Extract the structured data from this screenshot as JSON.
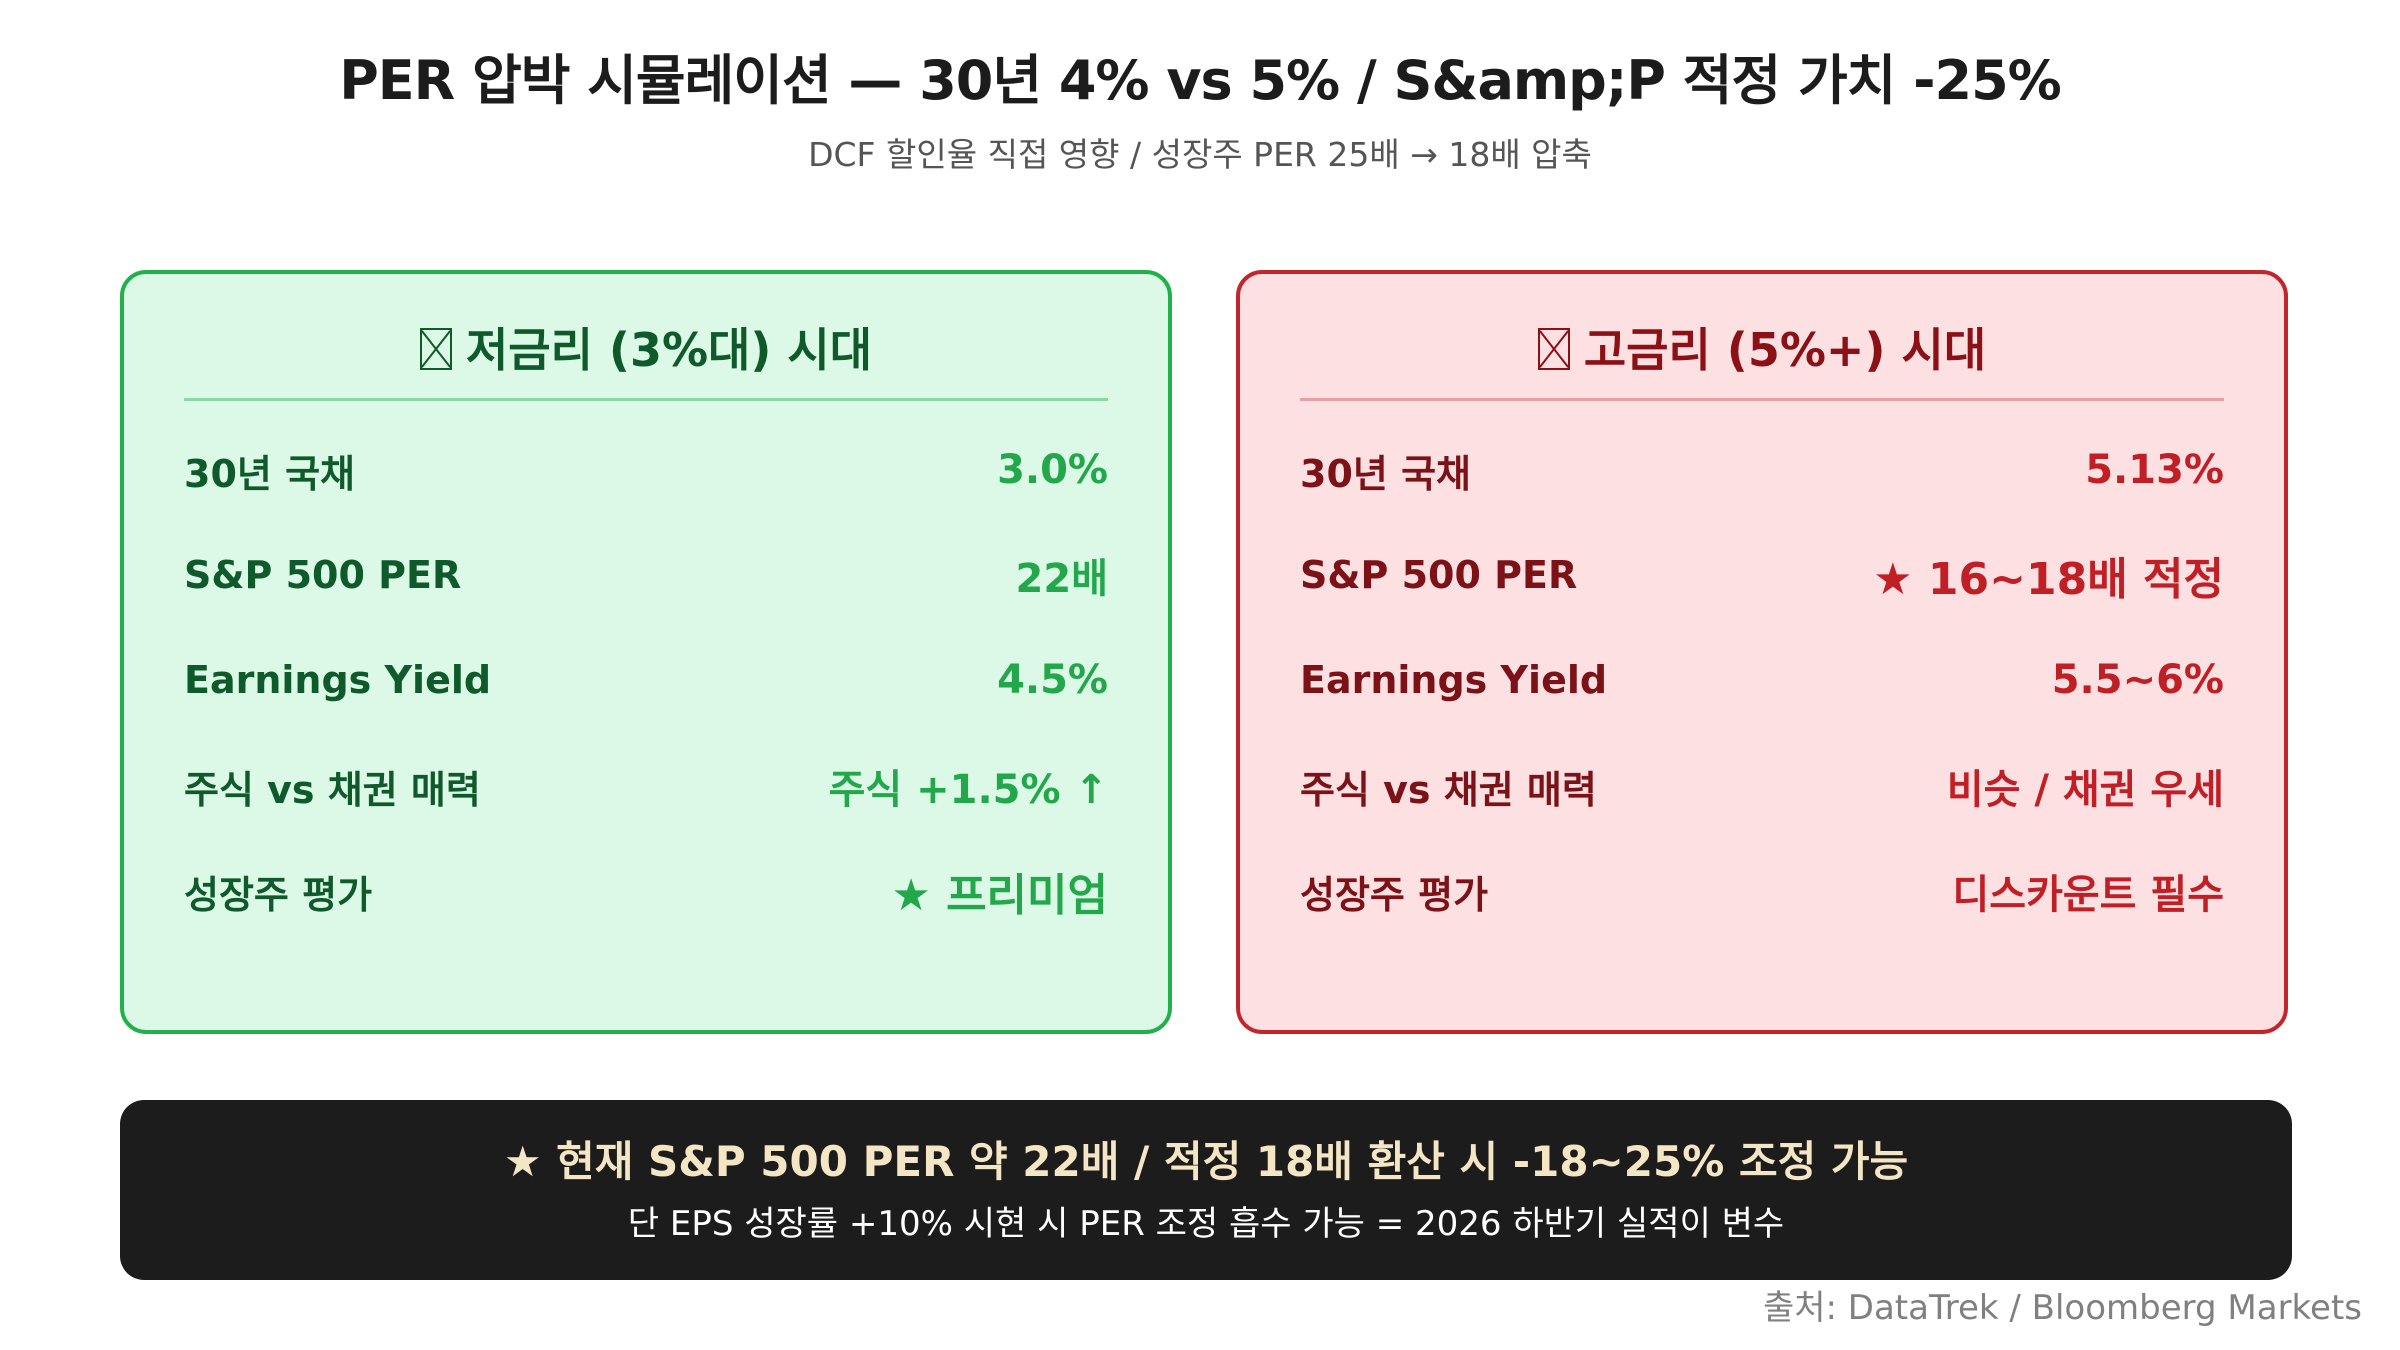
{
  "header": {
    "title": "PER 압박 시뮬레이션 — 30년 4% vs 5% / S&amp;P 적정 가치 -25%",
    "subtitle": "DCF 할인율 직접 영향 / 성장주 PER 25배 → 18배 압축"
  },
  "low_rate": {
    "icon": "box-x-icon",
    "heading": "저금리 (3%대) 시대",
    "rows": [
      {
        "label": "30년 국채",
        "value": "3.0%"
      },
      {
        "label": "S&P 500 PER",
        "value": "22배"
      },
      {
        "label": "Earnings Yield",
        "value": "4.5%"
      },
      {
        "label": "주식 vs 채권 매력",
        "value": "주식 +1.5% ↑"
      },
      {
        "label": "성장주 평가",
        "value": "★ 프리미엄"
      }
    ]
  },
  "high_rate": {
    "icon": "box-x-icon",
    "heading": "고금리 (5%+) 시대",
    "rows": [
      {
        "label": "30년 국채",
        "value": "5.13%"
      },
      {
        "label": "S&P 500 PER",
        "value": "★ 16~18배 적정"
      },
      {
        "label": "Earnings Yield",
        "value": "5.5~6%"
      },
      {
        "label": "주식 vs 채권 매력",
        "value": "비슷 / 채권 우세"
      },
      {
        "label": "성장주 평가",
        "value": "디스카운트 필수"
      }
    ]
  },
  "banner": {
    "main": "★ 현재 S&P 500 PER 약 22배 / 적정 18배 환산 시 -18~25% 조정 가능",
    "sub": "단 EPS 성장률 +10% 시현 시 PER 조정 흡수 가능 = 2026 하반기 실적이 변수"
  },
  "source": "출처: DataTrek / Bloomberg Markets",
  "colors": {
    "low_bg": "#dcf8e6",
    "low_border": "#22b04c",
    "low_text": "#0f5a2a",
    "low_value": "#22a84a",
    "high_bg": "#fde0e2",
    "high_border": "#c1262c",
    "high_text": "#7a1218",
    "high_value": "#c01f26",
    "banner_bg": "#1c1c1c",
    "banner_text": "#f4e6c4"
  }
}
